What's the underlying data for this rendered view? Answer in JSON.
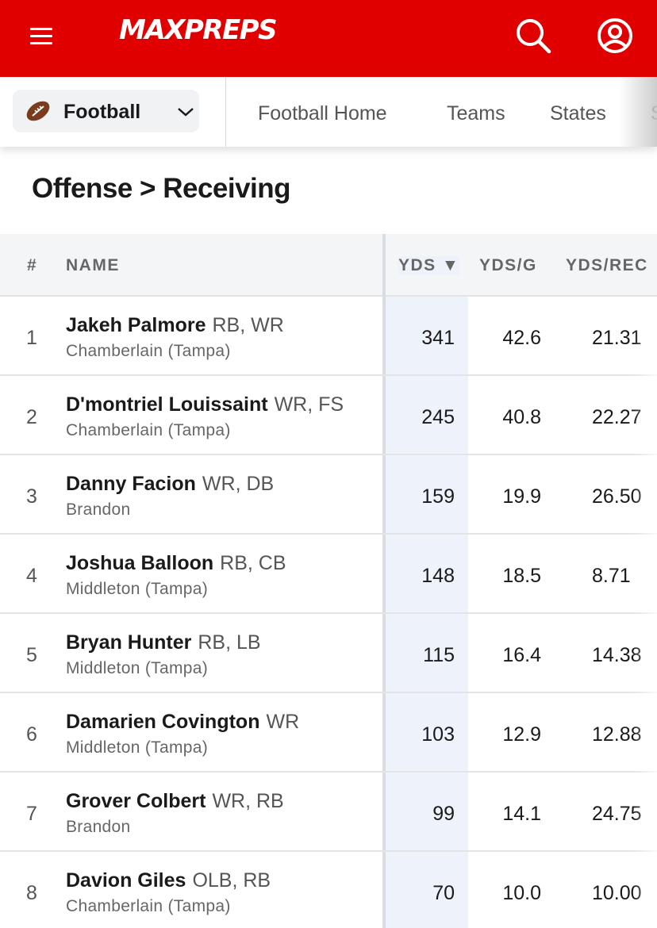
{
  "header": {
    "logo_text": "MAXPREPS",
    "brand_color": "#e00000",
    "icons": [
      "menu-icon",
      "search-icon",
      "account-icon"
    ]
  },
  "subnav": {
    "sport": "Football",
    "links": [
      "Football Home",
      "Teams",
      "States",
      "S"
    ]
  },
  "page_title": "Offense > Receiving",
  "table": {
    "columns": {
      "rank": "#",
      "name": "NAME",
      "yds": "YDS ▼",
      "ydsg": "YDS/G",
      "ydsrec": "YDS/REC"
    },
    "rows": [
      {
        "rank": "1",
        "name": "Jakeh Palmore",
        "pos": "RB, WR",
        "school": "Chamberlain (Tampa)",
        "yds": "341",
        "ydsg": "42.6",
        "ydsrec": "21.31"
      },
      {
        "rank": "2",
        "name": "D'montriel Louissaint",
        "pos": "WR, FS",
        "school": "Chamberlain (Tampa)",
        "yds": "245",
        "ydsg": "40.8",
        "ydsrec": "22.27"
      },
      {
        "rank": "3",
        "name": "Danny Facion",
        "pos": "WR, DB",
        "school": "Brandon",
        "yds": "159",
        "ydsg": "19.9",
        "ydsrec": "26.50"
      },
      {
        "rank": "4",
        "name": "Joshua Balloon",
        "pos": "RB, CB",
        "school": "Middleton (Tampa)",
        "yds": "148",
        "ydsg": "18.5",
        "ydsrec": "8.71"
      },
      {
        "rank": "5",
        "name": "Bryan Hunter",
        "pos": "RB, LB",
        "school": "Middleton (Tampa)",
        "yds": "115",
        "ydsg": "16.4",
        "ydsrec": "14.38"
      },
      {
        "rank": "6",
        "name": "Damarien Covington",
        "pos": "WR",
        "school": "Middleton (Tampa)",
        "yds": "103",
        "ydsg": "12.9",
        "ydsrec": "12.88"
      },
      {
        "rank": "7",
        "name": "Grover Colbert",
        "pos": "WR, RB",
        "school": "Brandon",
        "yds": "99",
        "ydsg": "14.1",
        "ydsrec": "24.75"
      },
      {
        "rank": "8",
        "name": "Davion Giles",
        "pos": "OLB, RB",
        "school": "Chamberlain (Tampa)",
        "yds": "70",
        "ydsg": "10.0",
        "ydsrec": "10.00"
      }
    ]
  }
}
